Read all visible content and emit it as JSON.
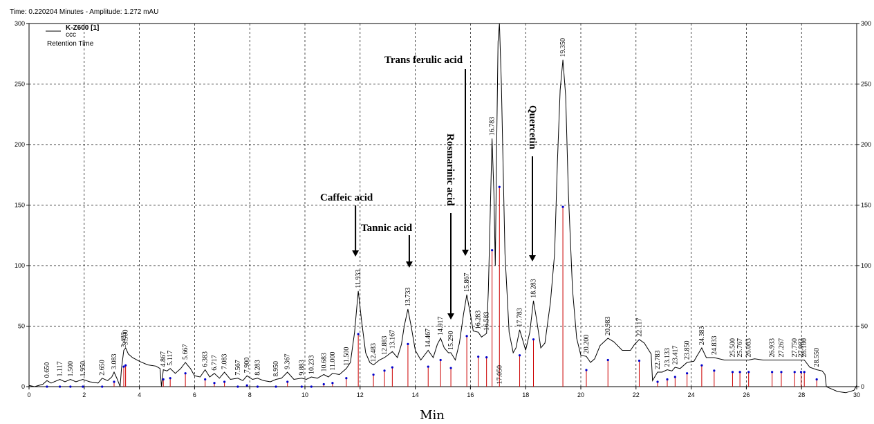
{
  "header": "Time:  0.220204 Minutes - Amplitude:  1.272 mAU",
  "legend": {
    "name": "K-Z600 [1]",
    "sub": "ccc",
    "third": "Retention Time"
  },
  "colors": {
    "trace": "#000000",
    "peak_marker": "#cc0000",
    "baseline_point": "#0000cc",
    "grid": "#000000"
  },
  "chart_data": {
    "type": "line",
    "xlabel": "Min",
    "ylabel": "",
    "xlim": [
      0,
      30
    ],
    "ylim": [
      0,
      300
    ],
    "x_ticks": [
      "0",
      "2",
      "4",
      "6",
      "8",
      "10",
      "12",
      "14",
      "16",
      "18",
      "20",
      "22",
      "24",
      "26",
      "28",
      "30"
    ],
    "y_ticks": [
      "0",
      "50",
      "100",
      "150",
      "200",
      "250",
      "300"
    ],
    "grid": true,
    "secondary_y_axis": true,
    "peaks": [
      {
        "label": "0.650",
        "x": 0.65,
        "y": 5
      },
      {
        "label": "1.117",
        "x": 1.117,
        "y": 6
      },
      {
        "label": "1.500",
        "x": 1.5,
        "y": 6
      },
      {
        "label": "1.950",
        "x": 1.95,
        "y": 6
      },
      {
        "label": "2.650",
        "x": 2.65,
        "y": 7
      },
      {
        "label": "3.083",
        "x": 3.083,
        "y": 12
      },
      {
        "label": "3.500",
        "x": 3.5,
        "y": 32
      },
      {
        "label": "3.433",
        "x": 3.433,
        "y": 30
      },
      {
        "label": "4.867",
        "x": 4.867,
        "y": 14
      },
      {
        "label": "5.117",
        "x": 5.117,
        "y": 15
      },
      {
        "label": "5.667",
        "x": 5.667,
        "y": 20
      },
      {
        "label": "6.383",
        "x": 6.383,
        "y": 14
      },
      {
        "label": "6.717",
        "x": 6.717,
        "y": 11
      },
      {
        "label": "7.083",
        "x": 7.083,
        "y": 12
      },
      {
        "label": "7.567",
        "x": 7.567,
        "y": 7
      },
      {
        "label": "7.900",
        "x": 7.9,
        "y": 9
      },
      {
        "label": "8.283",
        "x": 8.283,
        "y": 7
      },
      {
        "label": "8.950",
        "x": 8.95,
        "y": 6
      },
      {
        "label": "9.367",
        "x": 9.367,
        "y": 12
      },
      {
        "label": "9.883",
        "x": 9.883,
        "y": 7
      },
      {
        "label": "10.233",
        "x": 10.233,
        "y": 8
      },
      {
        "label": "10.683",
        "x": 10.683,
        "y": 10
      },
      {
        "label": "11.000",
        "x": 11.0,
        "y": 11
      },
      {
        "label": "11.500",
        "x": 11.5,
        "y": 15
      },
      {
        "label": "11.933",
        "x": 11.933,
        "y": 79
      },
      {
        "label": "12.483",
        "x": 12.483,
        "y": 18
      },
      {
        "label": "12.883",
        "x": 12.883,
        "y": 24
      },
      {
        "label": "13.167",
        "x": 13.167,
        "y": 29
      },
      {
        "label": "13.733",
        "x": 13.733,
        "y": 64
      },
      {
        "label": "14.467",
        "x": 14.467,
        "y": 30
      },
      {
        "label": "14.917",
        "x": 14.917,
        "y": 40
      },
      {
        "label": "15.290",
        "x": 15.29,
        "y": 28
      },
      {
        "label": "15.867",
        "x": 15.867,
        "y": 76
      },
      {
        "label": "16.283",
        "x": 16.283,
        "y": 45
      },
      {
        "label": "16.583",
        "x": 16.583,
        "y": 44
      },
      {
        "label": "16.783",
        "x": 16.783,
        "y": 205
      },
      {
        "label": "17.050",
        "x": 17.05,
        "y": 300
      },
      {
        "label": "17.783",
        "x": 17.783,
        "y": 47
      },
      {
        "label": "18.283",
        "x": 18.283,
        "y": 71
      },
      {
        "label": "19.350",
        "x": 19.35,
        "y": 270
      },
      {
        "label": "20.200",
        "x": 20.2,
        "y": 25
      },
      {
        "label": "20.983",
        "x": 20.983,
        "y": 40
      },
      {
        "label": "22.117",
        "x": 22.117,
        "y": 39
      },
      {
        "label": "22.783",
        "x": 22.783,
        "y": 12
      },
      {
        "label": "23.133",
        "x": 23.133,
        "y": 14
      },
      {
        "label": "23.417",
        "x": 23.417,
        "y": 16
      },
      {
        "label": "23.850",
        "x": 23.85,
        "y": 20
      },
      {
        "label": "24.383",
        "x": 24.383,
        "y": 32
      },
      {
        "label": "24.833",
        "x": 24.833,
        "y": 24
      },
      {
        "label": "25.500",
        "x": 25.5,
        "y": 22
      },
      {
        "label": "25.767",
        "x": 25.767,
        "y": 22
      },
      {
        "label": "26.083",
        "x": 26.083,
        "y": 22
      },
      {
        "label": "26.933",
        "x": 26.933,
        "y": 22
      },
      {
        "label": "27.267",
        "x": 27.267,
        "y": 22
      },
      {
        "label": "27.750",
        "x": 27.75,
        "y": 22
      },
      {
        "label": "27.983",
        "x": 27.983,
        "y": 22
      },
      {
        "label": "28.100",
        "x": 28.1,
        "y": 22
      },
      {
        "label": "28.550",
        "x": 28.55,
        "y": 14
      }
    ],
    "annotations": [
      {
        "text": "Caffeic acid",
        "peak_x": 11.933
      },
      {
        "text": "Tannic acid",
        "peak_x": 13.733
      },
      {
        "text": "Rosmarinic acid",
        "peak_x": 15.29
      },
      {
        "text": "Trans ferulic acid",
        "peak_x": 15.867
      },
      {
        "text": "Quercetin",
        "peak_x": 18.283
      }
    ],
    "trace": [
      [
        0,
        1
      ],
      [
        0.2,
        0
      ],
      [
        0.5,
        2
      ],
      [
        0.65,
        5
      ],
      [
        0.8,
        3
      ],
      [
        1.117,
        6
      ],
      [
        1.3,
        4
      ],
      [
        1.5,
        6
      ],
      [
        1.7,
        4
      ],
      [
        1.95,
        6
      ],
      [
        2.2,
        4
      ],
      [
        2.5,
        3
      ],
      [
        2.65,
        7
      ],
      [
        2.85,
        5
      ],
      [
        3.0,
        8
      ],
      [
        3.083,
        12
      ],
      [
        3.2,
        6
      ],
      [
        3.3,
        0
      ],
      [
        3.35,
        15
      ],
      [
        3.433,
        30
      ],
      [
        3.5,
        32
      ],
      [
        3.6,
        27
      ],
      [
        3.75,
        24
      ],
      [
        4.0,
        21
      ],
      [
        4.3,
        18
      ],
      [
        4.6,
        17
      ],
      [
        4.75,
        15
      ],
      [
        4.8,
        0
      ],
      [
        4.867,
        14
      ],
      [
        5.0,
        13
      ],
      [
        5.117,
        15
      ],
      [
        5.3,
        11
      ],
      [
        5.5,
        15
      ],
      [
        5.667,
        20
      ],
      [
        5.85,
        15
      ],
      [
        6.0,
        9
      ],
      [
        6.2,
        8
      ],
      [
        6.383,
        14
      ],
      [
        6.55,
        8
      ],
      [
        6.717,
        11
      ],
      [
        6.9,
        7
      ],
      [
        7.083,
        12
      ],
      [
        7.3,
        6
      ],
      [
        7.567,
        7
      ],
      [
        7.75,
        5
      ],
      [
        7.9,
        9
      ],
      [
        8.1,
        6
      ],
      [
        8.283,
        7
      ],
      [
        8.5,
        5
      ],
      [
        8.75,
        4
      ],
      [
        8.95,
        6
      ],
      [
        9.15,
        7
      ],
      [
        9.367,
        12
      ],
      [
        9.6,
        6
      ],
      [
        9.883,
        7
      ],
      [
        10.05,
        6
      ],
      [
        10.233,
        8
      ],
      [
        10.45,
        7
      ],
      [
        10.683,
        10
      ],
      [
        10.85,
        8
      ],
      [
        11.0,
        11
      ],
      [
        11.25,
        10
      ],
      [
        11.5,
        15
      ],
      [
        11.65,
        20
      ],
      [
        11.8,
        45
      ],
      [
        11.933,
        79
      ],
      [
        12.05,
        55
      ],
      [
        12.2,
        28
      ],
      [
        12.35,
        20
      ],
      [
        12.483,
        18
      ],
      [
        12.7,
        22
      ],
      [
        12.883,
        24
      ],
      [
        13.0,
        26
      ],
      [
        13.167,
        29
      ],
      [
        13.35,
        24
      ],
      [
        13.5,
        35
      ],
      [
        13.6,
        50
      ],
      [
        13.733,
        64
      ],
      [
        13.85,
        50
      ],
      [
        14.0,
        30
      ],
      [
        14.2,
        22
      ],
      [
        14.467,
        30
      ],
      [
        14.65,
        24
      ],
      [
        14.8,
        35
      ],
      [
        14.917,
        40
      ],
      [
        15.05,
        32
      ],
      [
        15.2,
        28
      ],
      [
        15.29,
        28
      ],
      [
        15.45,
        22
      ],
      [
        15.6,
        36
      ],
      [
        15.75,
        60
      ],
      [
        15.867,
        76
      ],
      [
        15.98,
        62
      ],
      [
        16.1,
        46
      ],
      [
        16.283,
        45
      ],
      [
        16.4,
        41
      ],
      [
        16.583,
        44
      ],
      [
        16.65,
        80
      ],
      [
        16.783,
        205
      ],
      [
        16.85,
        160
      ],
      [
        16.9,
        100
      ],
      [
        16.95,
        200
      ],
      [
        17.0,
        285
      ],
      [
        17.05,
        300
      ],
      [
        17.12,
        250
      ],
      [
        17.25,
        110
      ],
      [
        17.4,
        45
      ],
      [
        17.55,
        28
      ],
      [
        17.65,
        32
      ],
      [
        17.783,
        47
      ],
      [
        17.9,
        38
      ],
      [
        18.0,
        30
      ],
      [
        18.15,
        45
      ],
      [
        18.283,
        71
      ],
      [
        18.4,
        55
      ],
      [
        18.55,
        32
      ],
      [
        18.7,
        36
      ],
      [
        18.9,
        70
      ],
      [
        19.05,
        110
      ],
      [
        19.15,
        185
      ],
      [
        19.25,
        245
      ],
      [
        19.35,
        270
      ],
      [
        19.45,
        240
      ],
      [
        19.55,
        160
      ],
      [
        19.7,
        80
      ],
      [
        19.85,
        40
      ],
      [
        20.0,
        26
      ],
      [
        20.2,
        25
      ],
      [
        20.35,
        20
      ],
      [
        20.5,
        23
      ],
      [
        20.7,
        34
      ],
      [
        20.983,
        40
      ],
      [
        21.2,
        37
      ],
      [
        21.5,
        30
      ],
      [
        21.8,
        30
      ],
      [
        21.95,
        35
      ],
      [
        22.117,
        39
      ],
      [
        22.3,
        36
      ],
      [
        22.55,
        27
      ],
      [
        22.6,
        5
      ],
      [
        22.783,
        12
      ],
      [
        22.95,
        12
      ],
      [
        23.133,
        14
      ],
      [
        23.3,
        13
      ],
      [
        23.417,
        16
      ],
      [
        23.6,
        15
      ],
      [
        23.85,
        20
      ],
      [
        24.1,
        21
      ],
      [
        24.2,
        25
      ],
      [
        24.383,
        32
      ],
      [
        24.55,
        24
      ],
      [
        24.833,
        24
      ],
      [
        25.2,
        22
      ],
      [
        25.5,
        22
      ],
      [
        25.767,
        22
      ],
      [
        26.083,
        22
      ],
      [
        26.3,
        23
      ],
      [
        26.6,
        22
      ],
      [
        26.933,
        22
      ],
      [
        27.267,
        22
      ],
      [
        27.5,
        22
      ],
      [
        27.75,
        22
      ],
      [
        27.983,
        22
      ],
      [
        28.1,
        22
      ],
      [
        28.3,
        16
      ],
      [
        28.55,
        14
      ],
      [
        28.75,
        13
      ],
      [
        28.85,
        10
      ],
      [
        28.9,
        0
      ],
      [
        29.0,
        -1
      ],
      [
        29.3,
        -4
      ],
      [
        29.6,
        -5
      ],
      [
        29.9,
        -3
      ],
      [
        30,
        1
      ]
    ]
  }
}
